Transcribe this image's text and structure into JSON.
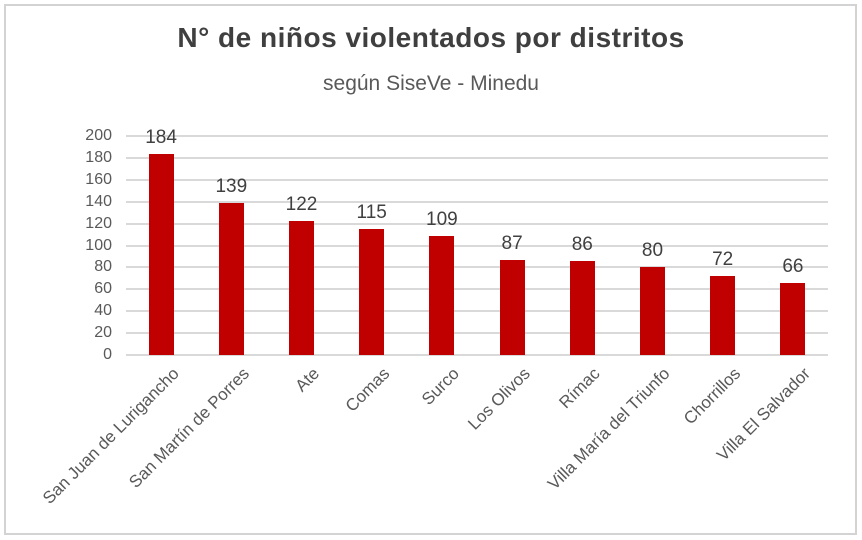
{
  "chart_data": {
    "type": "bar",
    "title": "N° de niños violentados por distritos",
    "subtitle": "según SiseVe - Minedu",
    "categories": [
      "San Juan de Lurigancho",
      "San Martín de Porres",
      "Ate",
      "Comas",
      "Surco",
      "Los Olivos",
      "Rímac",
      "Villa María del Triunfo",
      "Chorrillos",
      "Villa El Salvador"
    ],
    "values": [
      184,
      139,
      122,
      115,
      109,
      87,
      86,
      80,
      72,
      66
    ],
    "xlabel": "",
    "ylabel": "",
    "ylim": [
      0,
      200
    ],
    "yticks": [
      0,
      20,
      40,
      60,
      80,
      100,
      120,
      140,
      160,
      180,
      200
    ],
    "grid": true,
    "legend": "none",
    "data_labels_shown": true,
    "x_label_rotation_deg": -45
  },
  "colors": {
    "bar": "#c00000",
    "title_text": "#3f3f3f",
    "subtitle_text": "#595959",
    "axis_text": "#595959",
    "data_label_text": "#404040",
    "gridline": "#d9d9d9",
    "frame_border": "#d3d3d3",
    "background": "#ffffff"
  }
}
